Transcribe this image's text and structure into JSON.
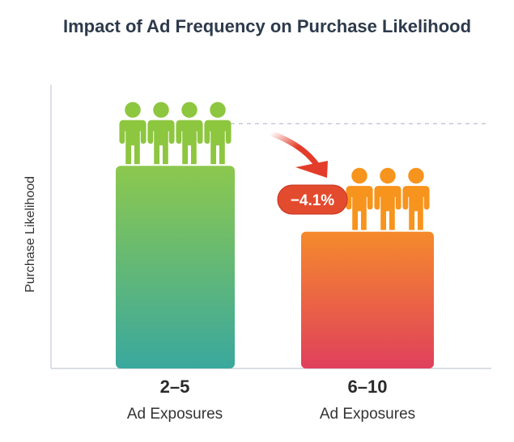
{
  "chart_data": {
    "type": "bar",
    "title": "Impact of Ad Frequency on Purchase Likelihood",
    "xlabel": "",
    "ylabel": "Purchase Likelihood",
    "categories": [
      "2–5",
      "6–10"
    ],
    "category_sublabels": [
      "Ad Exposures",
      "Ad Exposures"
    ],
    "values": [
      100,
      67.5
    ],
    "value_note": "relative bar heights; no numeric axis shown",
    "ylim": [
      0,
      140
    ],
    "grid": false,
    "annotation": "−4.1%",
    "people_counts": [
      4,
      3
    ],
    "colors": {
      "bar1_top": "#8cc84e",
      "bar1_bottom": "#3aa89e",
      "bar2_top": "#f58a2c",
      "bar2_bottom": "#e0405c",
      "people1": "#8dc63f",
      "people2": "#f7941d",
      "badge": "#e34b2e",
      "arrow": "#e43c2a"
    }
  }
}
